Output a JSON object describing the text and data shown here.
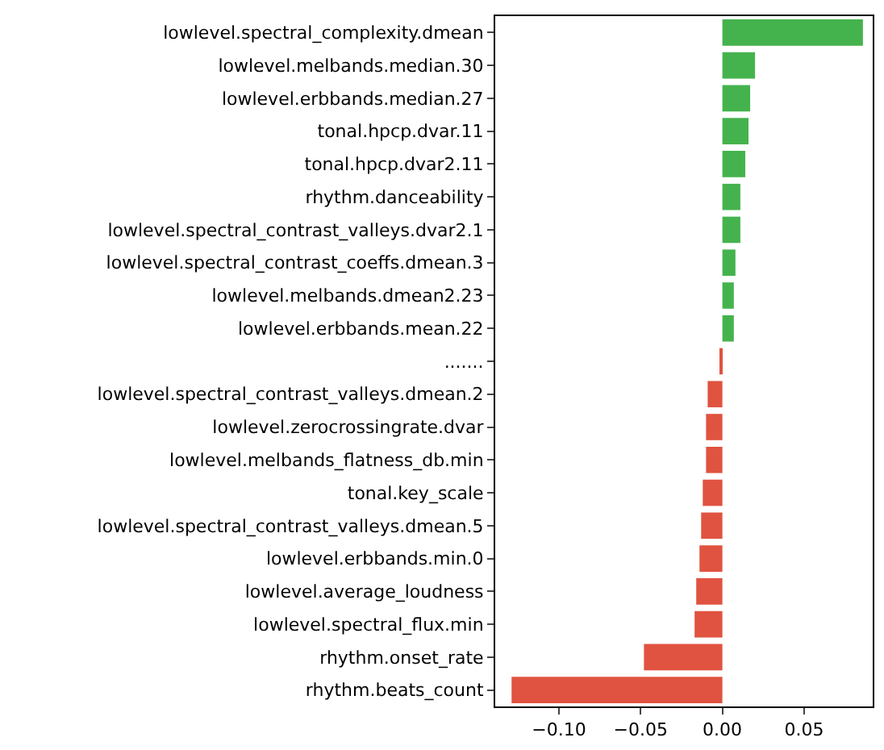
{
  "chart_data": {
    "type": "bar",
    "orientation": "horizontal",
    "categories": [
      "lowlevel.spectral_complexity.dmean",
      "lowlevel.melbands.median.30",
      "lowlevel.erbbands.median.27",
      "tonal.hpcp.dvar.11",
      "tonal.hpcp.dvar2.11",
      "rhythm.danceability",
      "lowlevel.spectral_contrast_valleys.dvar2.1",
      "lowlevel.spectral_contrast_coeffs.dmean.3",
      "lowlevel.melbands.dmean2.23",
      "lowlevel.erbbands.mean.22",
      ".......",
      "lowlevel.spectral_contrast_valleys.dmean.2",
      "lowlevel.zerocrossingrate.dvar",
      "lowlevel.melbands_flatness_db.min",
      "tonal.key_scale",
      "lowlevel.spectral_contrast_valleys.dmean.5",
      "lowlevel.erbbands.min.0",
      "lowlevel.average_loudness",
      "lowlevel.spectral_flux.min",
      "rhythm.onset_rate",
      "rhythm.beats_count"
    ],
    "values": [
      0.086,
      0.02,
      0.017,
      0.016,
      0.014,
      0.011,
      0.011,
      0.008,
      0.007,
      0.007,
      -0.001,
      -0.009,
      -0.01,
      -0.01,
      -0.012,
      -0.013,
      -0.014,
      -0.016,
      -0.017,
      -0.048,
      -0.129
    ],
    "colors": [
      "#45b34d",
      "#45b34d",
      "#45b34d",
      "#45b34d",
      "#45b34d",
      "#45b34d",
      "#45b34d",
      "#45b34d",
      "#45b34d",
      "#45b34d",
      "#e05340",
      "#e05340",
      "#e05340",
      "#e05340",
      "#e05340",
      "#e05340",
      "#e05340",
      "#e05340",
      "#e05340",
      "#e05340",
      "#e05340"
    ],
    "xlim": [
      -0.139,
      0.092
    ],
    "xticks": [
      {
        "value": -0.1,
        "label": "−0.10"
      },
      {
        "value": -0.05,
        "label": "−0.05"
      },
      {
        "value": 0,
        "label": "0.00"
      },
      {
        "value": 0.05,
        "label": "0.05"
      }
    ]
  }
}
